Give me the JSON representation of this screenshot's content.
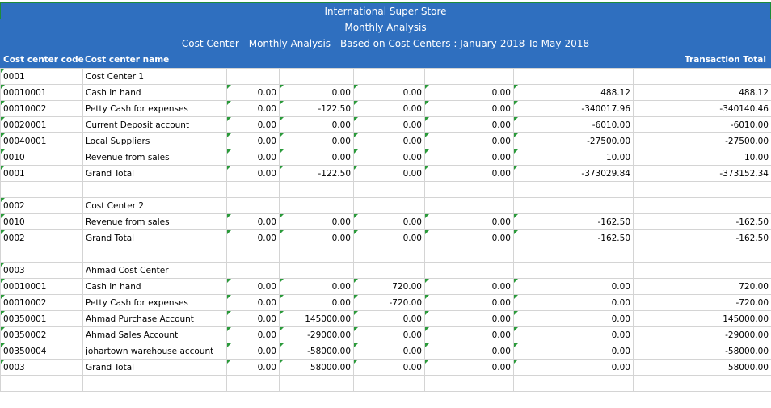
{
  "header": {
    "title": "International Super Store",
    "subtitle": "Monthly Analysis",
    "description": "Cost Center - Monthly Analysis - Based on Cost Centers : January-2018 To May-2018"
  },
  "columns": {
    "code": "Cost center code",
    "name": "Cost center name",
    "total": "Transaction Total"
  },
  "rows": [
    [
      "0001",
      "Cost Center 1"
    ],
    [
      "00010001",
      "Cash in hand",
      "0.00",
      "0.00",
      "0.00",
      "0.00",
      "488.12",
      "488.12"
    ],
    [
      "00010002",
      "Petty Cash for expenses",
      "0.00",
      "-122.50",
      "0.00",
      "0.00",
      "-340017.96",
      "-340140.46"
    ],
    [
      "00020001",
      "Current Deposit account",
      "0.00",
      "0.00",
      "0.00",
      "0.00",
      "-6010.00",
      "-6010.00"
    ],
    [
      "00040001",
      "Local Suppliers",
      "0.00",
      "0.00",
      "0.00",
      "0.00",
      "-27500.00",
      "-27500.00"
    ],
    [
      "0010",
      "Revenue from sales",
      "0.00",
      "0.00",
      "0.00",
      "0.00",
      "10.00",
      "10.00"
    ],
    [
      "0001",
      "Grand Total",
      "0.00",
      "-122.50",
      "0.00",
      "0.00",
      "-373029.84",
      "-373152.34"
    ],
    [],
    [
      "0002",
      "Cost Center 2"
    ],
    [
      "0010",
      "Revenue from sales",
      "0.00",
      "0.00",
      "0.00",
      "0.00",
      "-162.50",
      "-162.50"
    ],
    [
      "0002",
      "Grand Total",
      "0.00",
      "0.00",
      "0.00",
      "0.00",
      "-162.50",
      "-162.50"
    ],
    [],
    [
      "0003",
      "Ahmad Cost Center"
    ],
    [
      "00010001",
      "Cash in hand",
      "0.00",
      "0.00",
      "720.00",
      "0.00",
      "0.00",
      "720.00"
    ],
    [
      "00010002",
      "Petty Cash for expenses",
      "0.00",
      "0.00",
      "-720.00",
      "0.00",
      "0.00",
      "-720.00"
    ],
    [
      "00350001",
      "Ahmad Purchase Account",
      "0.00",
      "145000.00",
      "0.00",
      "0.00",
      "0.00",
      "145000.00"
    ],
    [
      "00350002",
      "Ahmad Sales Account",
      "0.00",
      "-29000.00",
      "0.00",
      "0.00",
      "0.00",
      "-29000.00"
    ],
    [
      "00350004",
      "johartown warehouse account",
      "0.00",
      "-58000.00",
      "0.00",
      "0.00",
      "0.00",
      "-58000.00"
    ],
    [
      "0003",
      "Grand Total",
      "0.00",
      "58000.00",
      "0.00",
      "0.00",
      "0.00",
      "58000.00"
    ],
    []
  ]
}
